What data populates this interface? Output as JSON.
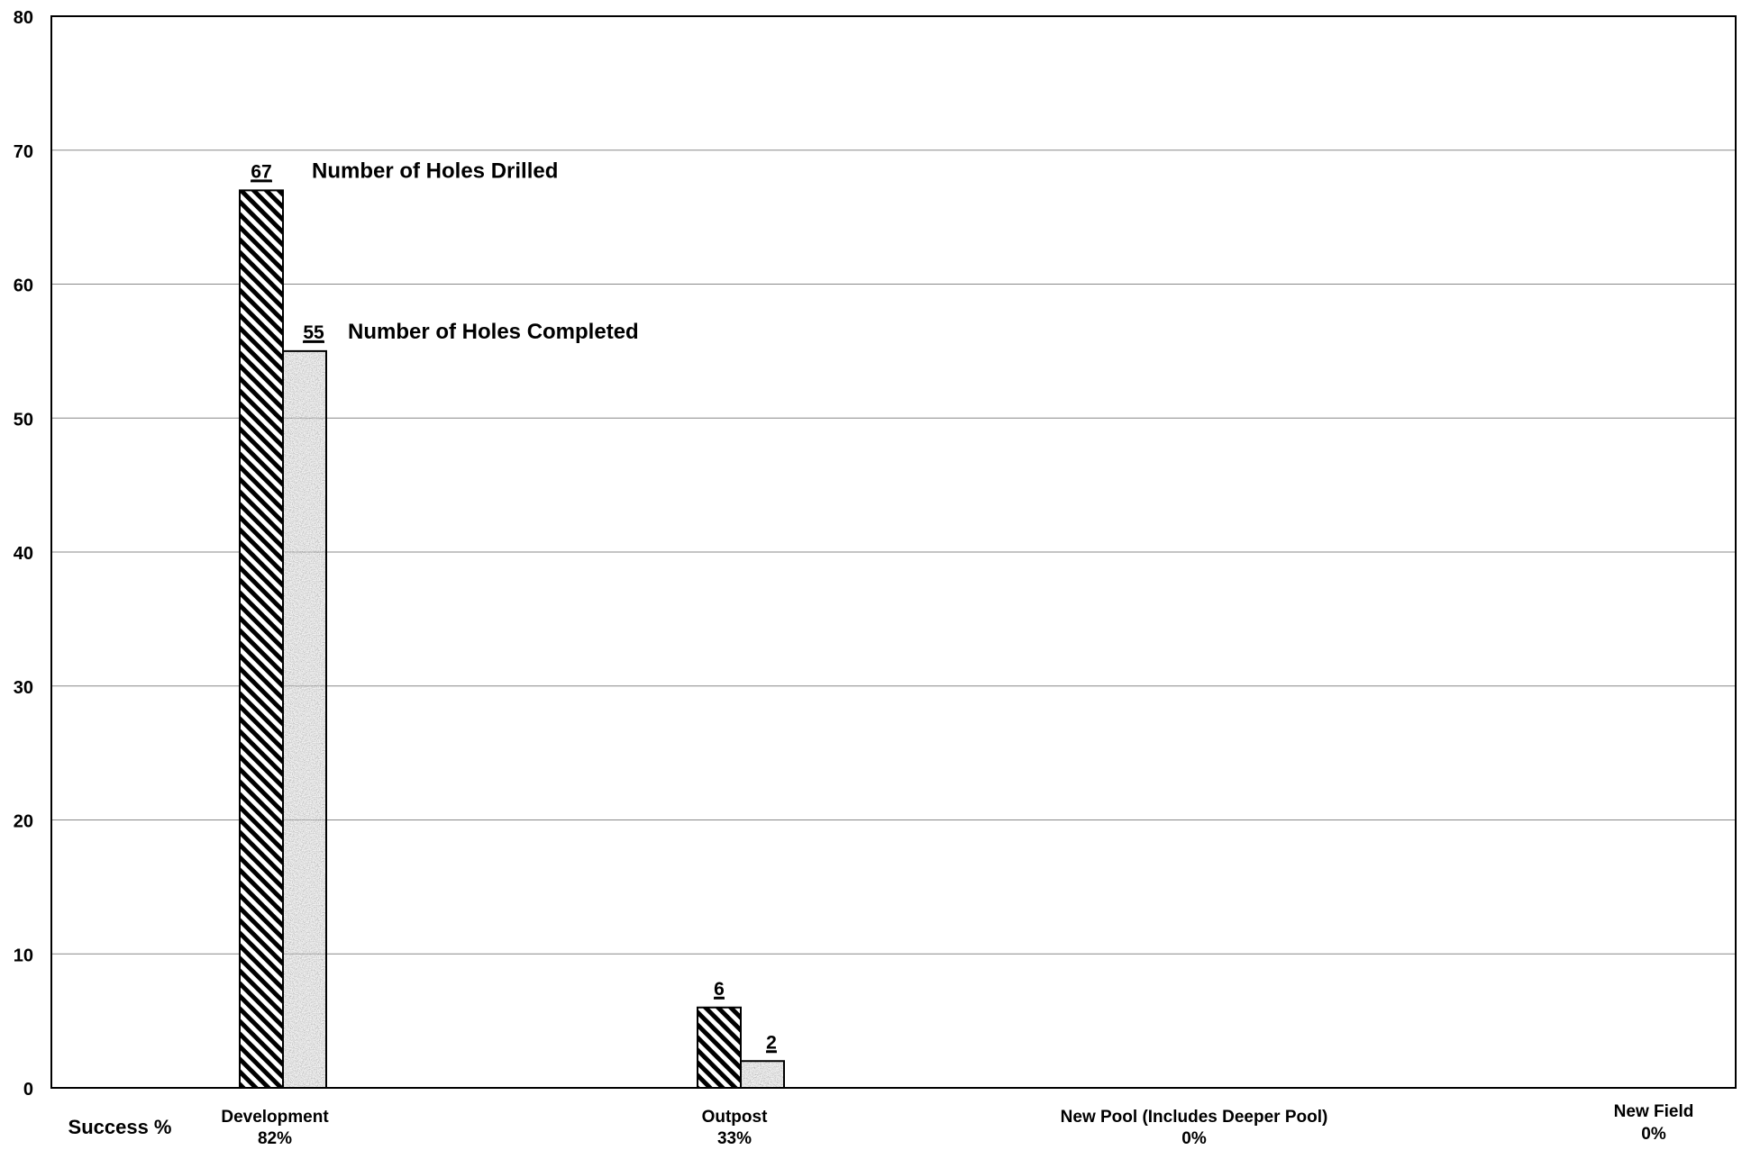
{
  "chart_data": {
    "type": "bar",
    "title": "",
    "xlabel": "",
    "ylabel": "",
    "ylim": [
      0,
      80
    ],
    "yticks": [
      0,
      10,
      20,
      30,
      40,
      50,
      60,
      70,
      80
    ],
    "grid": true,
    "categories": [
      {
        "name": "Development",
        "success": "82%"
      },
      {
        "name": "Outpost",
        "success": "33%"
      },
      {
        "name": "New Pool (Includes Deeper Pool)",
        "success": "0%"
      },
      {
        "name": "New Field",
        "success": "0%"
      }
    ],
    "row_label": "Success %",
    "series": [
      {
        "name": "Number of Holes Drilled",
        "values": [
          67,
          6,
          null,
          null
        ],
        "pattern": "diagonal-stripes"
      },
      {
        "name": "Number of Holes Completed",
        "values": [
          55,
          2,
          null,
          null
        ],
        "pattern": "gray-speckle"
      }
    ],
    "data_labels": [
      [
        "67",
        "6",
        "",
        ""
      ],
      [
        "55",
        "2",
        "",
        ""
      ]
    ],
    "annotations": [
      {
        "text": "Number of Holes Drilled",
        "series": 0,
        "category": 0
      },
      {
        "text": "Number of Holes Completed",
        "series": 1,
        "category": 0
      }
    ],
    "colors": {
      "grid": "#888888",
      "axis": "#000000",
      "bar_outline": "#000000",
      "stripe_dark": "#000000",
      "stripe_light": "#ffffff",
      "speckle_base": "#b8b8b8"
    }
  }
}
